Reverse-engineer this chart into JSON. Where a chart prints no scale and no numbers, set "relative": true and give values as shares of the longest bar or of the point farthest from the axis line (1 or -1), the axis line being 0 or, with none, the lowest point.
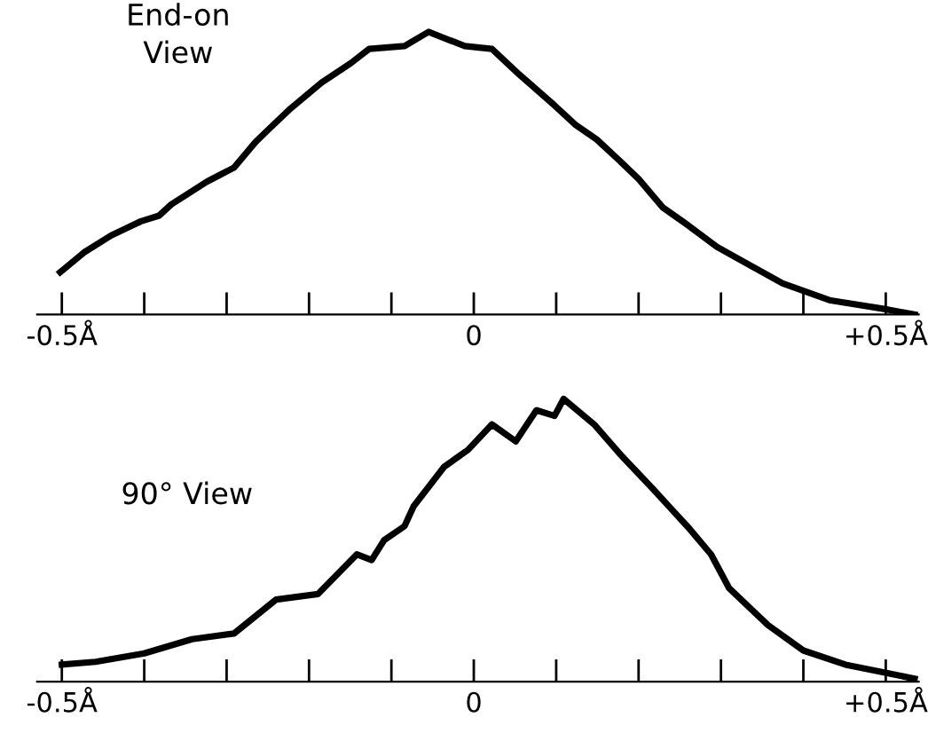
{
  "chart_data": [
    {
      "type": "line",
      "relative": true,
      "annotations": [
        "End-on\nView"
      ],
      "xlim": [
        -0.53,
        0.54
      ],
      "xticks": [
        {
          "value": -0.5,
          "label": "-0.5Å"
        },
        {
          "value": -0.4,
          "label": null
        },
        {
          "value": -0.3,
          "label": null
        },
        {
          "value": -0.2,
          "label": null
        },
        {
          "value": -0.1,
          "label": null
        },
        0,
        {
          "value": 0.1,
          "label": null
        },
        {
          "value": 0.2,
          "label": null
        },
        {
          "value": 0.3,
          "label": null
        },
        {
          "value": 0.4,
          "label": null
        },
        {
          "value": 0.5,
          "label": "+0.5Å"
        }
      ],
      "tick_labels": "x",
      "grid": false,
      "legend": false,
      "series": [
        {
          "color": "#000000",
          "x": [
            -0.502,
            -0.473,
            -0.44,
            -0.404,
            -0.382,
            -0.367,
            -0.324,
            -0.291,
            -0.265,
            -0.251,
            -0.222,
            -0.185,
            -0.149,
            -0.127,
            -0.084,
            -0.055,
            -0.011,
            0.022,
            0.055,
            0.098,
            0.124,
            0.149,
            0.175,
            0.2,
            0.229,
            0.258,
            0.295,
            0.338,
            0.375,
            0.433,
            0.498,
            0.535
          ],
          "values": [
            0.15,
            0.22,
            0.28,
            0.33,
            0.35,
            0.39,
            0.47,
            0.52,
            0.61,
            0.65,
            0.73,
            0.82,
            0.89,
            0.94,
            0.95,
            1.0,
            0.95,
            0.94,
            0.85,
            0.74,
            0.67,
            0.62,
            0.55,
            0.48,
            0.38,
            0.32,
            0.24,
            0.17,
            0.11,
            0.05,
            0.02,
            0.0
          ]
        }
      ]
    },
    {
      "type": "line",
      "relative": true,
      "annotations": [
        "90° View"
      ],
      "xlim": [
        -0.53,
        0.54
      ],
      "xticks": [
        {
          "value": -0.5,
          "label": "-0.5Å"
        },
        {
          "value": -0.4,
          "label": null
        },
        {
          "value": -0.3,
          "label": null
        },
        {
          "value": -0.2,
          "label": null
        },
        {
          "value": -0.1,
          "label": null
        },
        0,
        {
          "value": 0.1,
          "label": null
        },
        {
          "value": 0.2,
          "label": null
        },
        {
          "value": 0.3,
          "label": null
        },
        {
          "value": 0.4,
          "label": null
        },
        {
          "value": 0.5,
          "label": "+0.5Å"
        }
      ],
      "tick_labels": "x",
      "grid": false,
      "legend": false,
      "series": [
        {
          "color": "#000000",
          "x": [
            -0.5,
            -0.459,
            -0.4,
            -0.342,
            -0.291,
            -0.24,
            -0.189,
            -0.142,
            -0.124,
            -0.109,
            -0.084,
            -0.073,
            -0.036,
            -0.007,
            0.022,
            0.051,
            0.076,
            0.098,
            0.109,
            0.146,
            0.179,
            0.218,
            0.262,
            0.288,
            0.31,
            0.357,
            0.4,
            0.451,
            0.502,
            0.535
          ],
          "values": [
            0.06,
            0.07,
            0.1,
            0.15,
            0.17,
            0.29,
            0.31,
            0.45,
            0.43,
            0.5,
            0.55,
            0.62,
            0.76,
            0.82,
            0.91,
            0.85,
            0.96,
            0.94,
            1.0,
            0.91,
            0.8,
            0.68,
            0.54,
            0.45,
            0.33,
            0.2,
            0.11,
            0.06,
            0.03,
            0.01
          ]
        }
      ]
    }
  ]
}
